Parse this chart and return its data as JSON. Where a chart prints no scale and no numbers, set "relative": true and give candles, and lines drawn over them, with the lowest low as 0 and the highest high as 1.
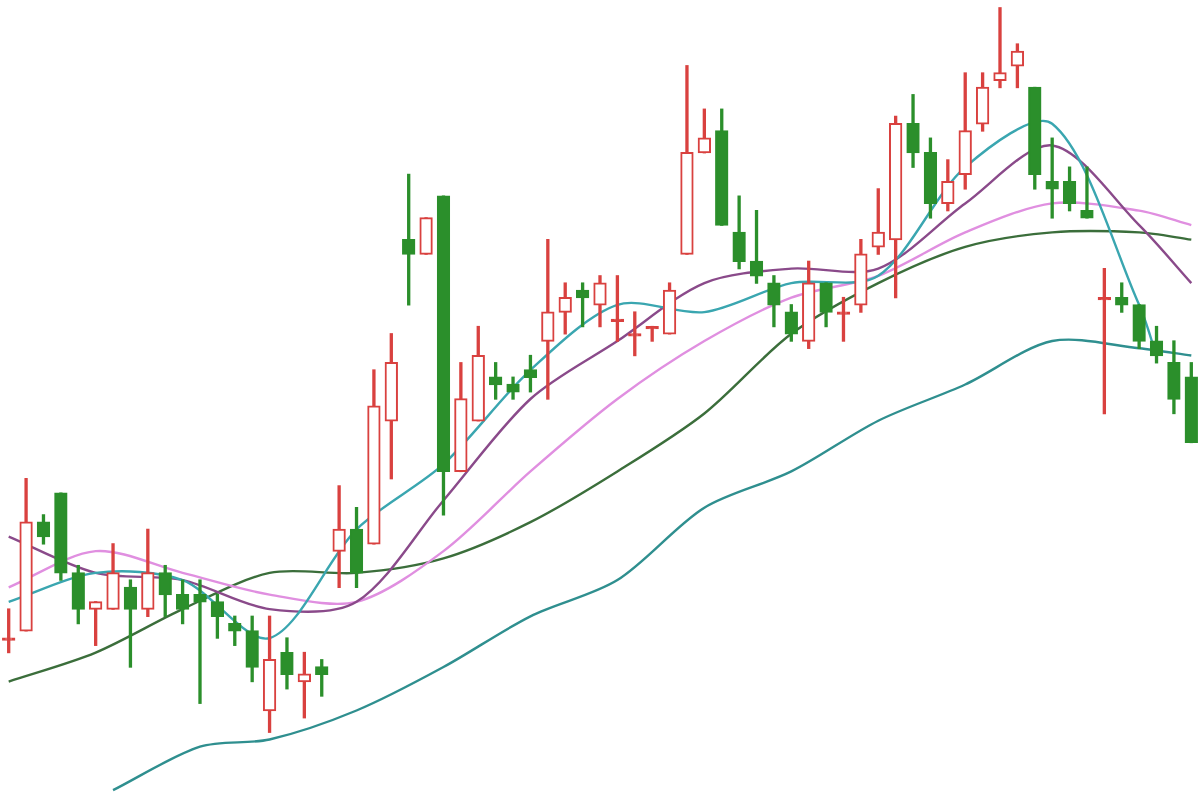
{
  "chart_data": {
    "type": "candlestick",
    "relative": true,
    "categories": [
      null,
      null,
      null,
      null,
      null,
      null,
      null,
      null,
      null,
      null,
      null,
      null,
      null,
      null,
      null,
      null,
      null,
      null,
      null,
      null,
      null,
      null,
      null,
      null,
      null,
      null,
      null,
      null,
      null,
      null,
      null,
      null,
      null,
      null,
      null,
      null,
      null,
      null,
      null,
      null,
      null,
      null,
      null,
      null,
      null,
      null,
      null,
      null,
      null,
      null,
      null,
      null,
      null,
      null,
      null,
      null,
      null,
      null,
      null,
      null,
      null,
      null,
      null,
      null,
      null,
      null,
      null,
      null,
      null
    ],
    "ohlc": [
      [
        0.13,
        0.17,
        0.11,
        0.13
      ],
      [
        0.14,
        0.35,
        0.14,
        0.29
      ],
      [
        0.29,
        0.3,
        0.26,
        0.27
      ],
      [
        0.33,
        0.33,
        0.21,
        0.22
      ],
      [
        0.22,
        0.23,
        0.15,
        0.17
      ],
      [
        0.17,
        0.18,
        0.12,
        0.18
      ],
      [
        0.17,
        0.26,
        0.17,
        0.22
      ],
      [
        0.2,
        0.21,
        0.09,
        0.17
      ],
      [
        0.17,
        0.28,
        0.16,
        0.22
      ],
      [
        0.22,
        0.23,
        0.16,
        0.19
      ],
      [
        0.19,
        0.21,
        0.15,
        0.17
      ],
      [
        0.19,
        0.21,
        0.04,
        0.18
      ],
      [
        0.18,
        0.19,
        0.13,
        0.16
      ],
      [
        0.15,
        0.16,
        0.12,
        0.14
      ],
      [
        0.14,
        0.16,
        0.07,
        0.09
      ],
      [
        0.03,
        0.16,
        0.0,
        0.1
      ],
      [
        0.11,
        0.13,
        0.06,
        0.08
      ],
      [
        0.07,
        0.11,
        0.02,
        0.08
      ],
      [
        0.09,
        0.1,
        0.05,
        0.08
      ],
      [
        0.25,
        0.34,
        0.2,
        0.28
      ],
      [
        0.28,
        0.31,
        0.2,
        0.22
      ],
      [
        0.26,
        0.5,
        0.26,
        0.45
      ],
      [
        0.43,
        0.55,
        0.35,
        0.51
      ],
      [
        0.68,
        0.77,
        0.59,
        0.66
      ],
      [
        0.66,
        0.71,
        0.66,
        0.71
      ],
      [
        0.74,
        0.74,
        0.3,
        0.36
      ],
      [
        0.36,
        0.51,
        0.36,
        0.46
      ],
      [
        0.43,
        0.56,
        0.43,
        0.52
      ],
      [
        0.49,
        0.51,
        0.46,
        0.48
      ],
      [
        0.48,
        0.49,
        0.46,
        0.47
      ],
      [
        0.5,
        0.52,
        0.47,
        0.49
      ],
      [
        0.54,
        0.68,
        0.46,
        0.58
      ],
      [
        0.58,
        0.62,
        0.55,
        0.6
      ],
      [
        0.61,
        0.62,
        0.56,
        0.6
      ],
      [
        0.59,
        0.63,
        0.56,
        0.62
      ],
      [
        0.57,
        0.63,
        0.54,
        0.57
      ],
      [
        0.55,
        0.58,
        0.52,
        0.55
      ],
      [
        0.56,
        0.56,
        0.54,
        0.56
      ],
      [
        0.55,
        0.62,
        0.55,
        0.61
      ],
      [
        0.66,
        0.92,
        0.66,
        0.8
      ],
      [
        0.8,
        0.86,
        0.8,
        0.82
      ],
      [
        0.83,
        0.86,
        0.7,
        0.7
      ],
      [
        0.69,
        0.74,
        0.64,
        0.65
      ],
      [
        0.65,
        0.72,
        0.62,
        0.63
      ],
      [
        0.62,
        0.63,
        0.56,
        0.59
      ],
      [
        0.58,
        0.59,
        0.54,
        0.55
      ],
      [
        0.54,
        0.65,
        0.53,
        0.62
      ],
      [
        0.62,
        0.62,
        0.56,
        0.58
      ],
      [
        0.58,
        0.6,
        0.54,
        0.58
      ],
      [
        0.59,
        0.68,
        0.58,
        0.66
      ],
      [
        0.67,
        0.75,
        0.66,
        0.69
      ],
      [
        0.68,
        0.85,
        0.6,
        0.84
      ],
      [
        0.84,
        0.88,
        0.78,
        0.8
      ],
      [
        0.8,
        0.82,
        0.71,
        0.73
      ],
      [
        0.73,
        0.79,
        0.72,
        0.76
      ],
      [
        0.77,
        0.91,
        0.75,
        0.83
      ],
      [
        0.84,
        0.91,
        0.83,
        0.89
      ],
      [
        0.9,
        1.0,
        0.89,
        0.91
      ],
      [
        0.92,
        0.95,
        0.89,
        0.94
      ],
      [
        0.89,
        0.89,
        0.75,
        0.77
      ],
      [
        0.76,
        0.82,
        0.71,
        0.75
      ],
      [
        0.76,
        0.78,
        0.72,
        0.73
      ],
      [
        0.72,
        0.78,
        0.71,
        0.71
      ],
      [
        0.6,
        0.64,
        0.44,
        0.6
      ],
      [
        0.6,
        0.62,
        0.58,
        0.59
      ],
      [
        0.59,
        0.59,
        0.53,
        0.54
      ],
      [
        0.54,
        0.56,
        0.51,
        0.52
      ],
      [
        0.51,
        0.54,
        0.44,
        0.46
      ],
      [
        0.49,
        0.51,
        0.4,
        0.4
      ]
    ],
    "colors": [
      "#d9413f",
      "#d9413f",
      "#2b8f2b",
      "#2b8f2b",
      "#2b8f2b",
      "#d9413f",
      "#d9413f",
      "#2b8f2b",
      "#d9413f",
      "#2b8f2b",
      "#2b8f2b",
      "#2b8f2b",
      "#2b8f2b",
      "#2b8f2b",
      "#2b8f2b",
      "#d9413f",
      "#2b8f2b",
      "#d9413f",
      "#2b8f2b",
      "#d9413f",
      "#2b8f2b",
      "#d9413f",
      "#d9413f",
      "#2b8f2b",
      "#d9413f",
      "#2b8f2b",
      "#d9413f",
      "#d9413f",
      "#2b8f2b",
      "#2b8f2b",
      "#2b8f2b",
      "#d9413f",
      "#d9413f",
      "#2b8f2b",
      "#d9413f",
      "#d9413f",
      "#d9413f",
      "#d9413f",
      "#d9413f",
      "#d9413f",
      "#d9413f",
      "#2b8f2b",
      "#2b8f2b",
      "#2b8f2b",
      "#2b8f2b",
      "#2b8f2b",
      "#d9413f",
      "#2b8f2b",
      "#d9413f",
      "#d9413f",
      "#d9413f",
      "#d9413f",
      "#2b8f2b",
      "#2b8f2b",
      "#d9413f",
      "#d9413f",
      "#d9413f",
      "#d9413f",
      "#d9413f",
      "#2b8f2b",
      "#2b8f2b",
      "#2b8f2b",
      "#2b8f2b",
      "#d9413f",
      "#2b8f2b",
      "#2b8f2b",
      "#2b8f2b",
      "#2b8f2b",
      "#2b8f2b"
    ],
    "series": [
      {
        "type": "line",
        "color": "#3aa6b0",
        "values": [
          0.18,
          null,
          null,
          null,
          null,
          0.22,
          null,
          null,
          null,
          null,
          0.21,
          null,
          null,
          null,
          null,
          0.13,
          null,
          null,
          null,
          null,
          0.28,
          null,
          null,
          null,
          null,
          0.37,
          null,
          null,
          null,
          null,
          0.5,
          null,
          null,
          null,
          null,
          0.59,
          null,
          null,
          null,
          null,
          0.58,
          null,
          null,
          null,
          null,
          0.62,
          null,
          null,
          null,
          null,
          0.63,
          null,
          null,
          null,
          null,
          0.78,
          null,
          null,
          null,
          null,
          0.84,
          null,
          null,
          null,
          null,
          0.59,
          0.52,
          null,
          null
        ]
      },
      {
        "type": "line",
        "color": "#8a4a8a",
        "values": [
          0.27,
          null,
          null,
          null,
          null,
          0.22,
          null,
          null,
          null,
          null,
          0.21,
          null,
          null,
          null,
          null,
          0.17,
          null,
          null,
          null,
          null,
          0.18,
          null,
          null,
          null,
          null,
          0.32,
          null,
          null,
          null,
          null,
          0.46,
          null,
          null,
          null,
          null,
          0.54,
          null,
          null,
          null,
          null,
          0.62,
          null,
          null,
          null,
          null,
          0.64,
          null,
          null,
          null,
          null,
          0.64,
          null,
          null,
          null,
          null,
          0.73,
          null,
          null,
          null,
          null,
          0.81,
          null,
          null,
          null,
          null,
          0.7,
          null,
          null,
          0.62
        ]
      },
      {
        "type": "line",
        "color": "#e08fe0",
        "values": [
          0.2,
          null,
          null,
          null,
          null,
          0.25,
          null,
          null,
          null,
          null,
          0.22,
          null,
          null,
          null,
          null,
          0.19,
          null,
          null,
          null,
          null,
          0.18,
          null,
          null,
          null,
          null,
          0.25,
          null,
          null,
          null,
          null,
          0.36,
          null,
          null,
          null,
          null,
          0.46,
          null,
          null,
          null,
          null,
          0.54,
          null,
          null,
          null,
          null,
          0.6,
          null,
          null,
          null,
          null,
          0.63,
          null,
          null,
          null,
          null,
          0.69,
          null,
          null,
          null,
          null,
          0.73,
          null,
          null,
          null,
          null,
          0.72,
          null,
          null,
          0.7
        ]
      },
      {
        "type": "line",
        "color": "#3b6e3b",
        "values": [
          0.07,
          null,
          null,
          null,
          null,
          0.11,
          null,
          null,
          null,
          null,
          0.17,
          null,
          null,
          null,
          null,
          0.22,
          null,
          null,
          null,
          null,
          0.22,
          null,
          null,
          null,
          null,
          0.24,
          null,
          null,
          null,
          null,
          0.29,
          null,
          null,
          null,
          null,
          0.36,
          null,
          null,
          null,
          null,
          0.44,
          null,
          null,
          null,
          null,
          0.55,
          null,
          null,
          null,
          null,
          0.62,
          null,
          null,
          null,
          null,
          0.67,
          null,
          null,
          null,
          null,
          0.69,
          null,
          null,
          null,
          null,
          0.69,
          null,
          null,
          0.68
        ]
      },
      {
        "type": "line",
        "color": "#2f8f8f",
        "values": [
          null,
          null,
          null,
          null,
          null,
          null,
          -0.08,
          null,
          null,
          null,
          null,
          -0.02,
          null,
          null,
          null,
          -0.01,
          null,
          null,
          null,
          null,
          0.03,
          null,
          null,
          null,
          null,
          0.09,
          null,
          null,
          null,
          null,
          0.16,
          null,
          null,
          null,
          null,
          0.21,
          null,
          null,
          null,
          null,
          0.31,
          null,
          null,
          null,
          null,
          0.36,
          null,
          null,
          null,
          null,
          0.43,
          null,
          null,
          null,
          null,
          0.48,
          null,
          null,
          null,
          null,
          0.54,
          null,
          null,
          null,
          null,
          0.53,
          null,
          null,
          0.52
        ]
      }
    ]
  }
}
